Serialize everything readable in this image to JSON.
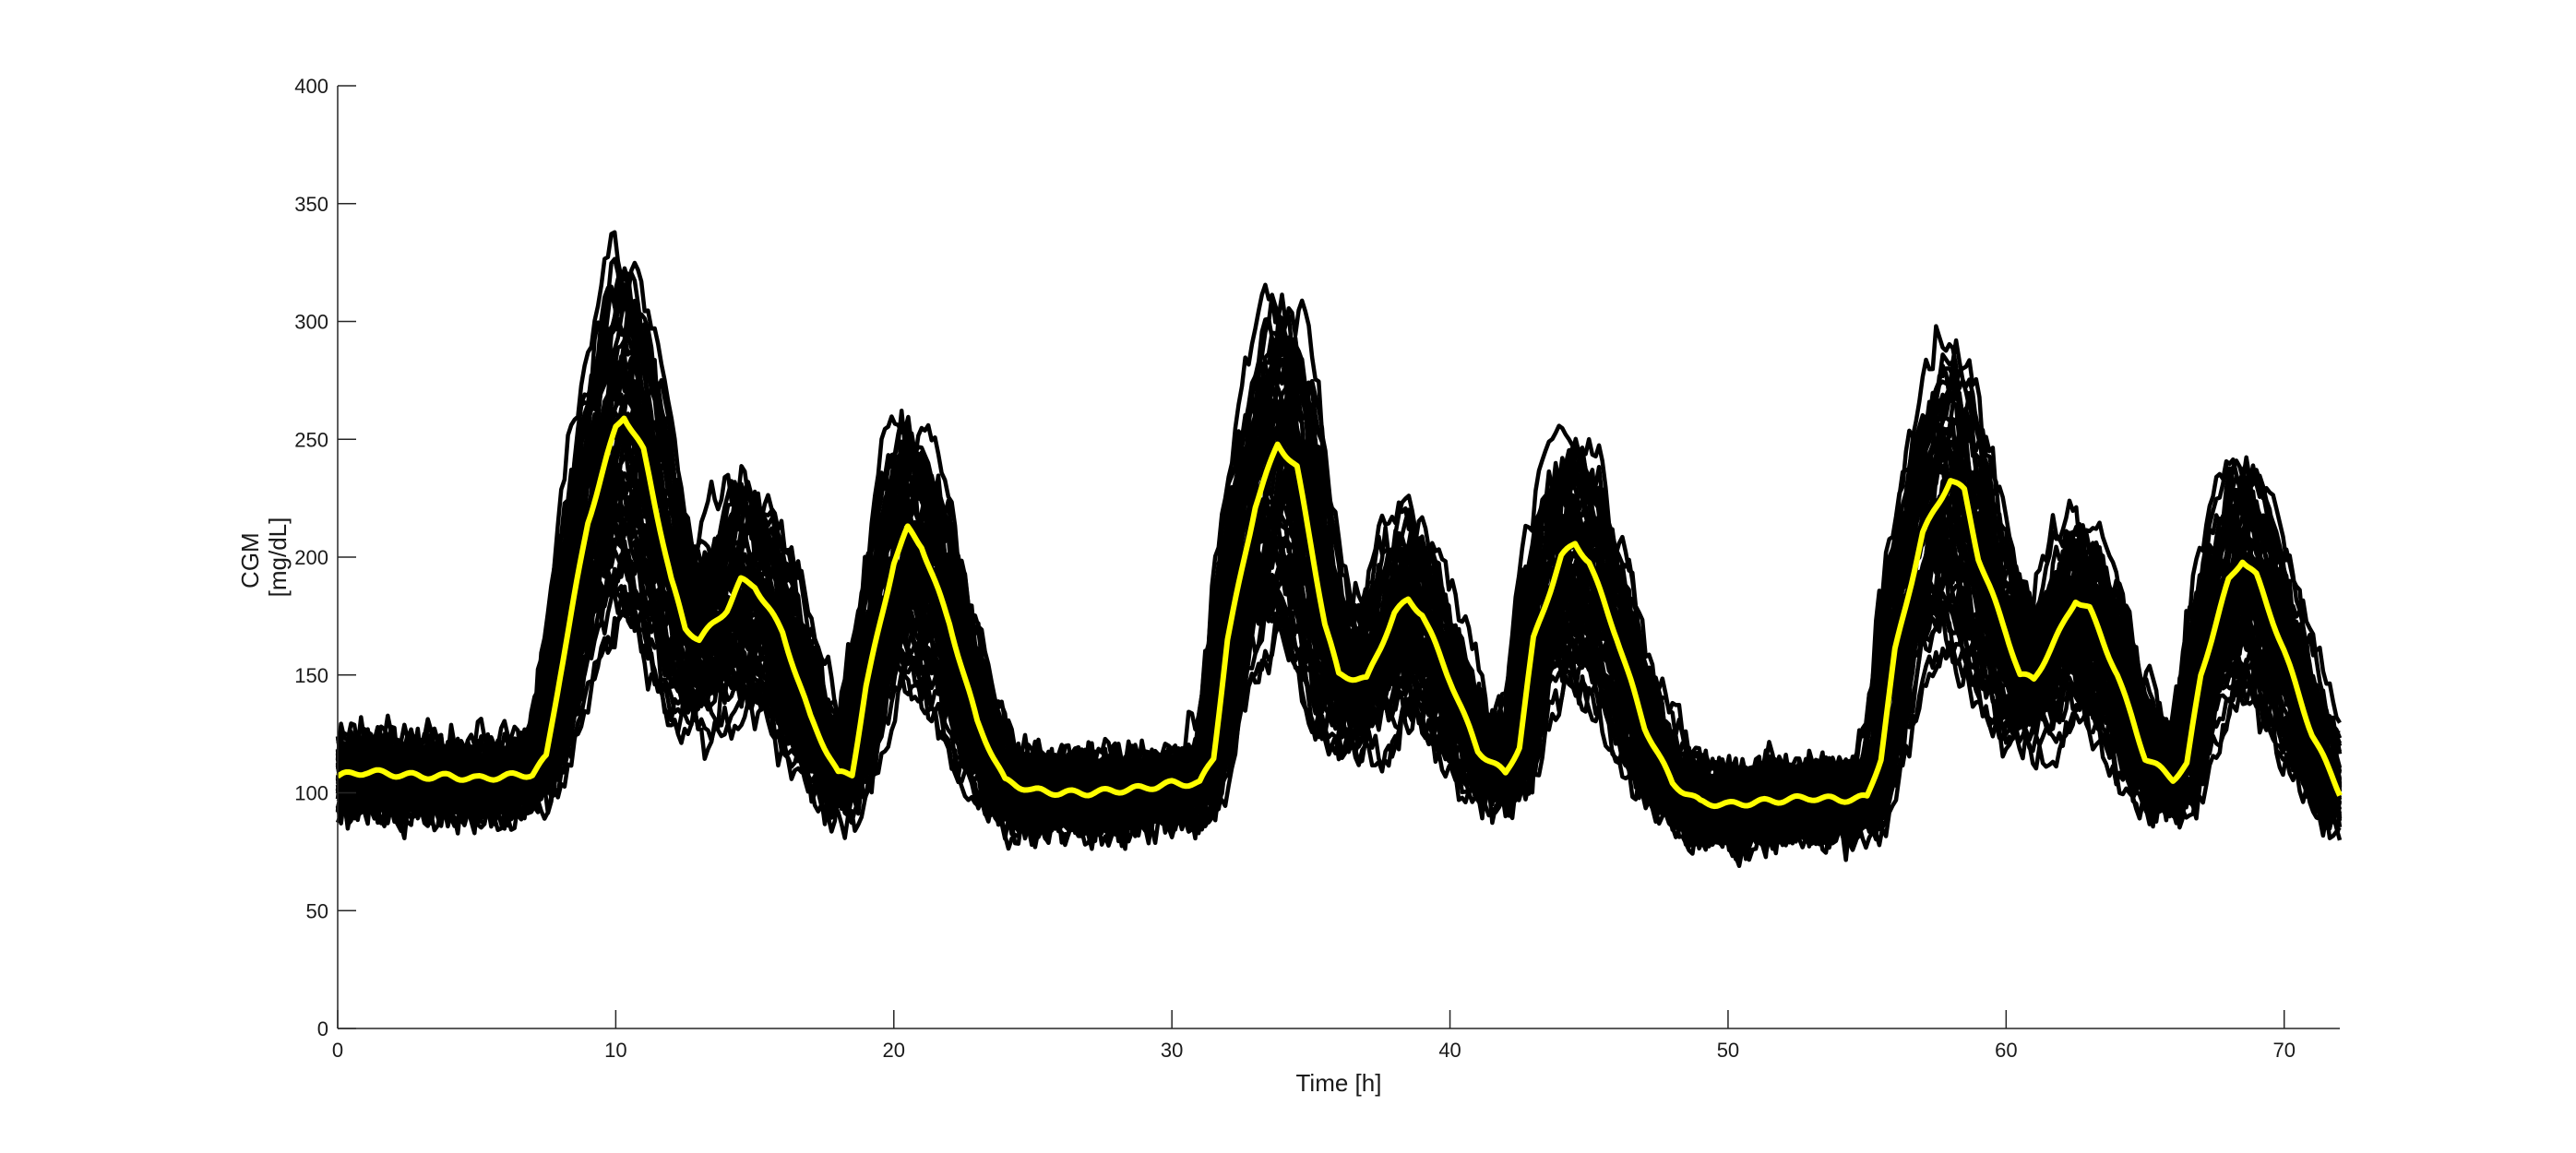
{
  "chart_data": {
    "type": "line",
    "xlabel": "Time [h]",
    "ylabel_lines": [
      "CGM",
      "[mg/dL]"
    ],
    "xlim": [
      0,
      72
    ],
    "ylim": [
      0,
      400
    ],
    "xticks": [
      0,
      10,
      20,
      30,
      40,
      50,
      60,
      70
    ],
    "yticks": [
      0,
      50,
      100,
      150,
      200,
      250,
      300,
      350,
      400
    ],
    "grid": false,
    "legend": "none",
    "colors": {
      "traces": "#000000",
      "mean": "#FFFF00"
    },
    "mean_series": {
      "x": [
        0,
        1,
        2,
        3,
        4,
        5,
        6,
        7,
        7.5,
        8,
        9,
        10,
        10.3,
        11,
        12,
        12.5,
        13,
        14,
        14.5,
        15,
        16,
        17,
        18,
        18.5,
        19,
        20,
        20.5,
        21,
        22,
        23,
        24,
        25,
        26,
        27,
        28,
        29,
        30,
        31,
        31.5,
        32,
        33,
        33.8,
        34.5,
        35,
        35.5,
        36,
        37,
        38,
        38.5,
        39,
        40,
        41,
        42,
        42.5,
        43,
        44,
        44.5,
        45,
        46,
        47,
        48,
        49,
        50,
        51,
        52,
        53,
        54,
        55,
        55.5,
        56,
        57,
        58,
        58.5,
        59,
        60,
        60.5,
        61,
        62,
        62.5,
        63,
        64,
        65,
        66,
        66.5,
        67,
        68,
        68.5,
        69,
        70,
        71,
        72
      ],
      "y": [
        107,
        109,
        108,
        107,
        107,
        106,
        107,
        108,
        115,
        150,
        215,
        255,
        260,
        245,
        190,
        170,
        165,
        178,
        190,
        188,
        168,
        132,
        108,
        108,
        145,
        198,
        212,
        205,
        172,
        130,
        105,
        101,
        100,
        100,
        101,
        102,
        104,
        104,
        115,
        165,
        222,
        248,
        238,
        205,
        172,
        150,
        148,
        176,
        182,
        176,
        148,
        118,
        108,
        120,
        165,
        200,
        206,
        198,
        166,
        128,
        104,
        96,
        95,
        96,
        97,
        98,
        97,
        98,
        115,
        160,
        210,
        233,
        228,
        200,
        168,
        150,
        148,
        170,
        182,
        178,
        150,
        115,
        106,
        112,
        150,
        190,
        199,
        192,
        160,
        125,
        100
      ]
    },
    "trace_count": 60
  }
}
